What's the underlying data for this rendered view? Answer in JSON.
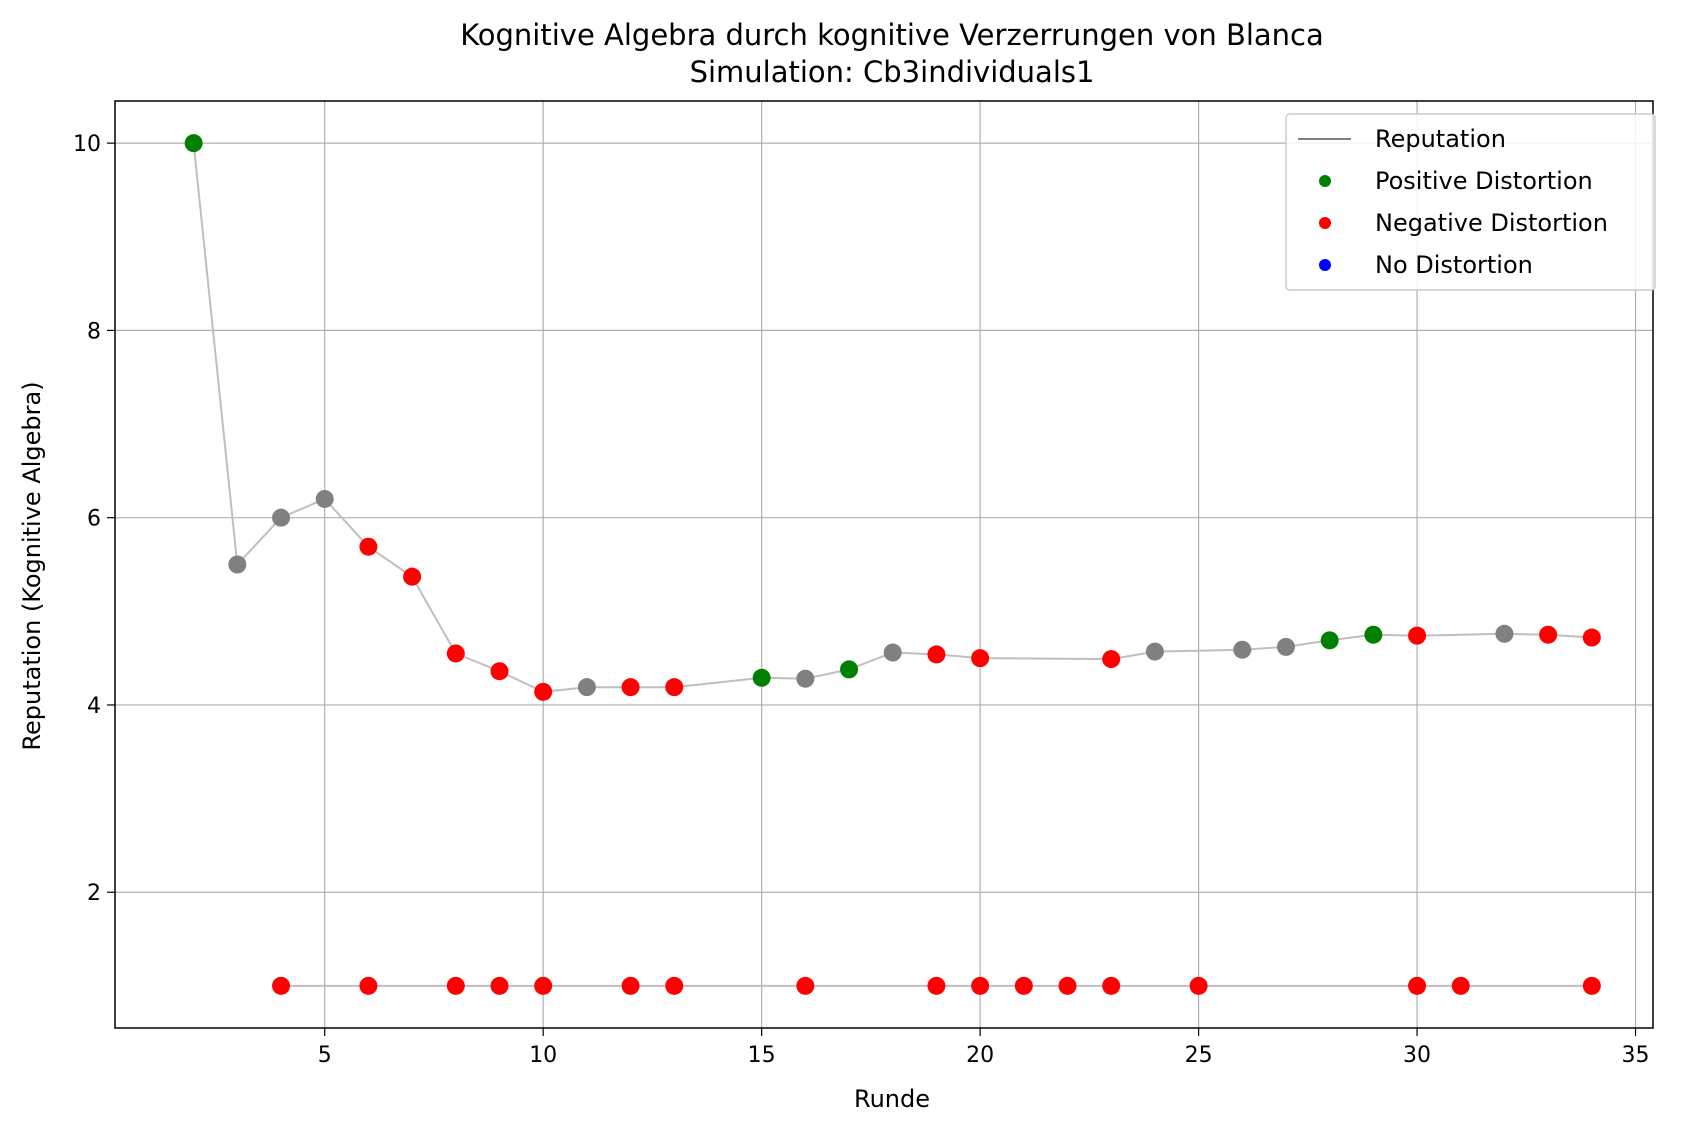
{
  "chart_data": {
    "type": "scatter",
    "title": "Kognitive Algebra durch kognitive Verzerrungen von Blanca",
    "subtitle": "Simulation: Cb3individuals1",
    "xlabel": "Runde",
    "ylabel": "Reputation (Kognitive Algebra)",
    "xlim": [
      0.2,
      35.4
    ],
    "ylim": [
      0.55,
      10.45
    ],
    "xticks": [
      5,
      10,
      15,
      20,
      25,
      30,
      35
    ],
    "yticks": [
      2,
      4,
      6,
      8,
      10
    ],
    "grid": true,
    "legend_position": "top-right",
    "legend": [
      {
        "label": "Reputation",
        "kind": "line",
        "color": "#808080"
      },
      {
        "label": "Positive Distortion",
        "kind": "dot",
        "color": "#008000"
      },
      {
        "label": "Negative Distortion",
        "kind": "dot",
        "color": "#ff0000"
      },
      {
        "label": "No Distortion",
        "kind": "dot",
        "color": "#0000ff"
      }
    ],
    "series": [
      {
        "line_color": "#bfbfbf",
        "points": [
          {
            "x": 2,
            "y": 10.0,
            "c": "#008000"
          },
          {
            "x": 3,
            "y": 5.5,
            "c": "#808080"
          },
          {
            "x": 4,
            "y": 6.0,
            "c": "#808080"
          },
          {
            "x": 5,
            "y": 6.2,
            "c": "#808080"
          },
          {
            "x": 6,
            "y": 5.69,
            "c": "#ff0000"
          },
          {
            "x": 7,
            "y": 5.37,
            "c": "#ff0000"
          },
          {
            "x": 8,
            "y": 4.55,
            "c": "#ff0000"
          },
          {
            "x": 9,
            "y": 4.36,
            "c": "#ff0000"
          },
          {
            "x": 10,
            "y": 4.14,
            "c": "#ff0000"
          },
          {
            "x": 11,
            "y": 4.19,
            "c": "#808080"
          },
          {
            "x": 12,
            "y": 4.19,
            "c": "#ff0000"
          },
          {
            "x": 13,
            "y": 4.19,
            "c": "#ff0000"
          },
          {
            "x": 15,
            "y": 4.29,
            "c": "#008000"
          },
          {
            "x": 16,
            "y": 4.28,
            "c": "#808080"
          },
          {
            "x": 17,
            "y": 4.38,
            "c": "#008000"
          },
          {
            "x": 18,
            "y": 4.56,
            "c": "#808080"
          },
          {
            "x": 19,
            "y": 4.54,
            "c": "#ff0000"
          },
          {
            "x": 20,
            "y": 4.5,
            "c": "#ff0000"
          },
          {
            "x": 23,
            "y": 4.49,
            "c": "#ff0000"
          },
          {
            "x": 24,
            "y": 4.57,
            "c": "#808080"
          },
          {
            "x": 26,
            "y": 4.59,
            "c": "#808080"
          },
          {
            "x": 27,
            "y": 4.62,
            "c": "#808080"
          },
          {
            "x": 28,
            "y": 4.69,
            "c": "#008000"
          },
          {
            "x": 29,
            "y": 4.75,
            "c": "#008000"
          },
          {
            "x": 30,
            "y": 4.74,
            "c": "#ff0000"
          },
          {
            "x": 32,
            "y": 4.76,
            "c": "#808080"
          },
          {
            "x": 33,
            "y": 4.75,
            "c": "#ff0000"
          },
          {
            "x": 34,
            "y": 4.72,
            "c": "#ff0000"
          }
        ]
      },
      {
        "line_color": "#bfbfbf",
        "points": [
          {
            "x": 4,
            "y": 1.0,
            "c": "#ff0000"
          },
          {
            "x": 6,
            "y": 1.0,
            "c": "#ff0000"
          },
          {
            "x": 8,
            "y": 1.0,
            "c": "#ff0000"
          },
          {
            "x": 9,
            "y": 1.0,
            "c": "#ff0000"
          },
          {
            "x": 10,
            "y": 1.0,
            "c": "#ff0000"
          },
          {
            "x": 12,
            "y": 1.0,
            "c": "#ff0000"
          },
          {
            "x": 13,
            "y": 1.0,
            "c": "#ff0000"
          },
          {
            "x": 16,
            "y": 1.0,
            "c": "#ff0000"
          },
          {
            "x": 19,
            "y": 1.0,
            "c": "#ff0000"
          },
          {
            "x": 20,
            "y": 1.0,
            "c": "#ff0000"
          },
          {
            "x": 21,
            "y": 1.0,
            "c": "#ff0000"
          },
          {
            "x": 22,
            "y": 1.0,
            "c": "#ff0000"
          },
          {
            "x": 23,
            "y": 1.0,
            "c": "#ff0000"
          },
          {
            "x": 25,
            "y": 1.0,
            "c": "#ff0000"
          },
          {
            "x": 30,
            "y": 1.0,
            "c": "#ff0000"
          },
          {
            "x": 31,
            "y": 1.0,
            "c": "#ff0000"
          },
          {
            "x": 34,
            "y": 1.0,
            "c": "#ff0000"
          }
        ]
      }
    ]
  }
}
